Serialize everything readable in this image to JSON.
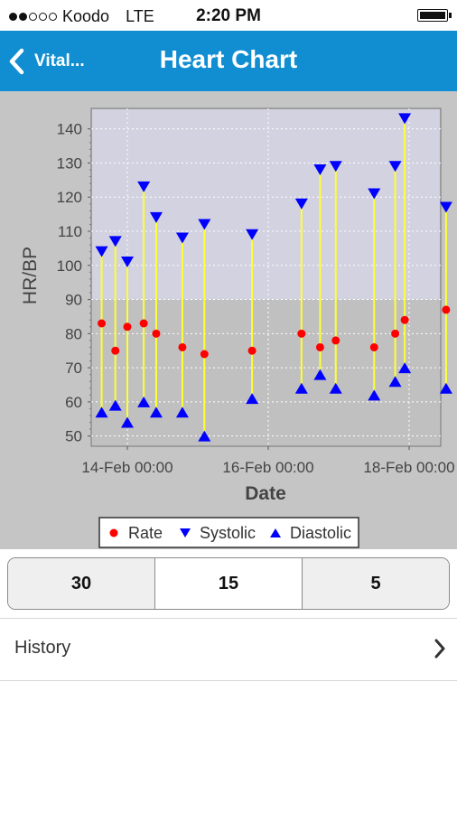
{
  "status_bar": {
    "carrier": "Koodo",
    "network": "LTE",
    "time": "2:20 PM"
  },
  "nav": {
    "back_label": "Vital...",
    "title": "Heart Chart"
  },
  "chart_data": {
    "type": "scatter",
    "xlabel": "Date",
    "ylabel": "HR/BP",
    "x_ticks": [
      "14-Feb 00:00",
      "16-Feb 00:00",
      "18-Feb 00:00"
    ],
    "y_ticks": [
      50,
      60,
      70,
      80,
      90,
      100,
      110,
      120,
      130,
      140
    ],
    "ylim": [
      47,
      146
    ],
    "reference_band": {
      "from": 90,
      "to": 146
    },
    "grid": true,
    "legend": [
      "Rate",
      "Systolic",
      "Diastolic"
    ],
    "legend_position": "bottom",
    "x": [
      "13-Feb 15:15",
      "13-Feb 19:55",
      "14-Feb 00:00",
      "14-Feb 05:35",
      "14-Feb 09:50",
      "14-Feb 18:45",
      "15-Feb 02:15",
      "15-Feb 18:30",
      "16-Feb 11:20",
      "16-Feb 17:40",
      "16-Feb 23:00",
      "17-Feb 12:05",
      "17-Feb 19:15",
      "17-Feb 22:30",
      "18-Feb 12:35"
    ],
    "series": [
      {
        "name": "Rate",
        "color": "#ff0000",
        "marker": "circle",
        "values": [
          83,
          75,
          82,
          83,
          80,
          76,
          74,
          75,
          80,
          76,
          78,
          76,
          80,
          84,
          87
        ]
      },
      {
        "name": "Systolic",
        "color": "#0000ff",
        "marker": "triangle-down",
        "values": [
          104,
          107,
          101,
          123,
          114,
          108,
          112,
          109,
          118,
          128,
          129,
          121,
          129,
          143,
          117
        ]
      },
      {
        "name": "Diastolic",
        "color": "#0000ff",
        "marker": "triangle-up",
        "values": [
          57,
          59,
          54,
          60,
          57,
          57,
          50,
          61,
          64,
          68,
          64,
          62,
          66,
          70,
          64
        ]
      }
    ]
  },
  "range_buttons": [
    {
      "label": "30",
      "selected": false
    },
    {
      "label": "15",
      "selected": true
    },
    {
      "label": "5",
      "selected": false
    }
  ],
  "list": {
    "history_label": "History"
  }
}
